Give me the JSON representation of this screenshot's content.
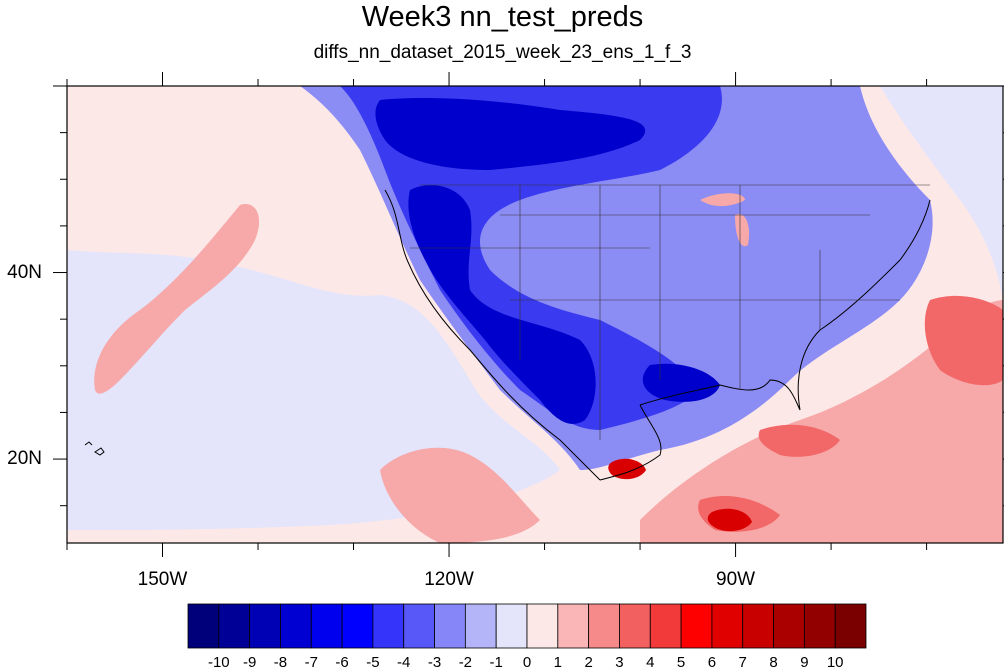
{
  "title": "Week3 nn_test_preds",
  "subtitle": "diffs_nn_dataset_2015_week_23_ens_1_f_3",
  "map": {
    "projection": "cylindrical-equidistant",
    "lon_range": [
      -160,
      -62
    ],
    "lat_range": [
      11,
      60
    ],
    "lon_labels": [
      {
        "lon": -150,
        "text": "150W"
      },
      {
        "lon": -120,
        "text": "120W"
      },
      {
        "lon": -90,
        "text": "90W"
      }
    ],
    "lat_labels": [
      {
        "lat": 40,
        "text": "40N"
      },
      {
        "lat": 20,
        "text": "20N"
      }
    ],
    "ocean_color": "#fde8e8",
    "colors": {
      "deep_blue": "#0000cc",
      "mid_blue": "#3a3af0",
      "light_blue": "#8c8cf5",
      "pale_blue": "#e4e4fb",
      "light_red": "#f7a8a8",
      "mid_red": "#f26868",
      "deep_red": "#d80000"
    }
  },
  "colorbar": {
    "labels": [
      "-10",
      "-9",
      "-8",
      "-7",
      "-6",
      "-5",
      "-4",
      "-3",
      "-2",
      "-1",
      "0",
      "1",
      "2",
      "3",
      "4",
      "5",
      "6",
      "7",
      "8",
      "9",
      "10"
    ],
    "colors": [
      "#00007a",
      "#000096",
      "#0000b4",
      "#0000d2",
      "#0000ee",
      "#0000ff",
      "#3434fa",
      "#5858f8",
      "#8686f8",
      "#b4b4f8",
      "#e4e4fb",
      "#fde8e8",
      "#fab6b6",
      "#f68a8a",
      "#f26060",
      "#f23a3a",
      "#ff0000",
      "#e00000",
      "#c80000",
      "#aa0000",
      "#920000",
      "#7a0000"
    ]
  }
}
